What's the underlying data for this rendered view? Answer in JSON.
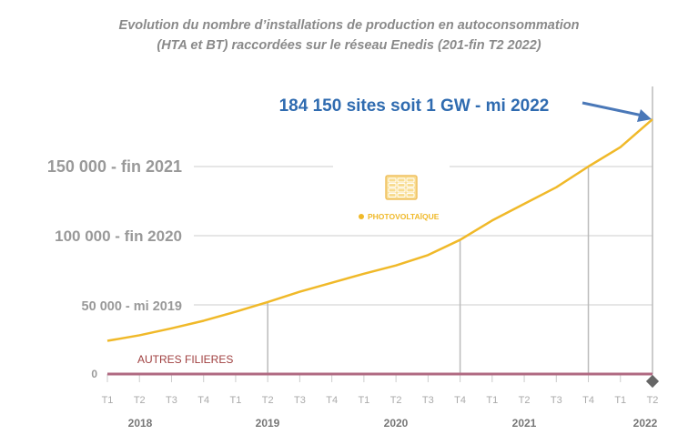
{
  "chart_data": {
    "type": "line",
    "title": "Evolution du nombre d’installations de production en autoconsommation",
    "subtitle": "(HTA et BT) raccordées sur le réseau Enedis (201-fin T2 2022)",
    "annotation": "184 150 sites soit 1 GW - mi 2022",
    "y_tick_labels": [
      {
        "value": 0,
        "label": "0"
      },
      {
        "value": 50000,
        "label": "50 000 - mi 2019"
      },
      {
        "value": 100000,
        "label": "100 000 - fin 2020"
      },
      {
        "value": 150000,
        "label": "150 000 - fin 2021"
      }
    ],
    "ylim": [
      0,
      190000
    ],
    "categories": [
      "T1",
      "T2",
      "T3",
      "T4",
      "T1",
      "T2",
      "T3",
      "T4",
      "T1",
      "T2",
      "T3",
      "T4",
      "T1",
      "T2",
      "T3",
      "T4",
      "T1",
      "T2"
    ],
    "years": [
      {
        "label": "2018",
        "start": 0
      },
      {
        "label": "2019",
        "start": 5
      },
      {
        "label": "2020",
        "start": 9
      },
      {
        "label": "2021",
        "start": 13
      },
      {
        "label": "2022",
        "start": 17
      }
    ],
    "series": [
      {
        "name": "PHOTOVOLTAÏQUE",
        "color": "#f0b929",
        "values": [
          24000,
          28000,
          33000,
          38500,
          45000,
          52000,
          59500,
          66000,
          72500,
          78500,
          86000,
          97000,
          111000,
          123000,
          135000,
          150000,
          164000,
          184150
        ]
      },
      {
        "name": "AUTRES FILIERES",
        "color": "#b06a82",
        "values": [
          0,
          0,
          0,
          0,
          0,
          0,
          0,
          0,
          0,
          0,
          0,
          0,
          0,
          0,
          0,
          0,
          0,
          0
        ]
      }
    ],
    "marker_indices": [
      5,
      11,
      15,
      17
    ],
    "colors": {
      "annotation": "#2f6bb0",
      "grid": "#e6e6e6",
      "autres_label": "#a04040"
    }
  }
}
